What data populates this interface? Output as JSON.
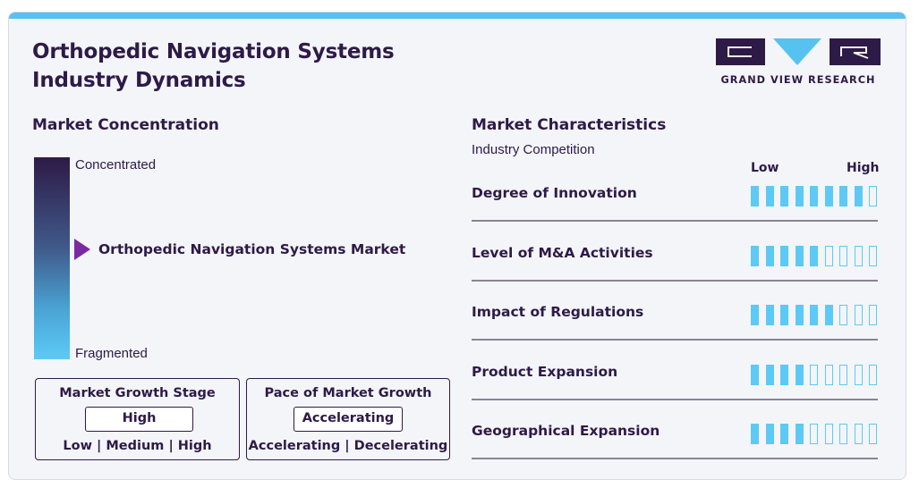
{
  "header": {
    "title_line1": "Orthopedic Navigation Systems",
    "title_line2": "Industry Dynamics"
  },
  "logo": {
    "text": "GRAND VIEW RESEARCH"
  },
  "colors": {
    "dark": "#2e1a47",
    "accent": "#55c2f0",
    "marker": "#7b2aa0"
  },
  "concentration": {
    "heading": "Market Concentration",
    "top_label": "Concentrated",
    "bottom_label": "Fragmented",
    "marker_label": "Orthopedic Navigation Systems Market"
  },
  "growth_stage": {
    "title": "Market Growth Stage",
    "value": "High",
    "options": "Low | Medium | High"
  },
  "growth_pace": {
    "title": "Pace of Market Growth",
    "value": "Accelerating",
    "options": "Accelerating | Decelerating"
  },
  "characteristics": {
    "heading": "Market Characteristics",
    "subheading": "Industry Competition",
    "low_label": "Low",
    "high_label": "High"
  },
  "chart_data": {
    "type": "table",
    "scale_max": 9,
    "rows": [
      {
        "label": "Degree of Innovation",
        "value": 8
      },
      {
        "label": "Level of M&A Activities",
        "value": 5
      },
      {
        "label": "Impact of Regulations",
        "value": 6
      },
      {
        "label": "Product Expansion",
        "value": 4
      },
      {
        "label": "Geographical Expansion",
        "value": 4
      }
    ]
  }
}
